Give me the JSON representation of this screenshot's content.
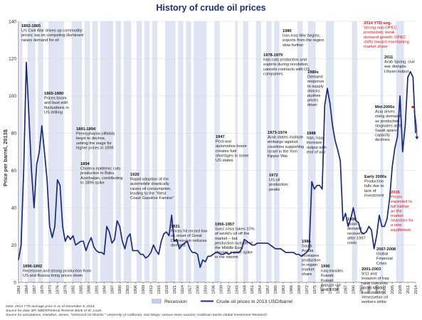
{
  "chart_data": {
    "type": "line",
    "title": "History of crude oil prices",
    "ylabel": "Price per barrel, 2013$",
    "ylim": [
      0,
      140
    ],
    "yticks": [
      0,
      20,
      40,
      60,
      80,
      100,
      120,
      140
    ],
    "xlim": [
      1861,
      2014
    ],
    "xtick_labels": [
      "1861",
      "1864",
      "1867",
      "1870",
      "1873",
      "1876",
      "1879",
      "1882",
      "1885",
      "1888",
      "1891",
      "1894",
      "1897",
      "1900",
      "1903",
      "1906",
      "1909",
      "1912",
      "1915",
      "1918",
      "1921",
      "1924",
      "1927",
      "1930",
      "1933",
      "1936",
      "1939",
      "1942",
      "1945",
      "1948",
      "1951",
      "1954",
      "1957",
      "1960",
      "1963",
      "1966",
      "1969",
      "1972",
      "1975",
      "1978",
      "1981",
      "1984",
      "1987",
      "1990",
      "1993",
      "1996",
      "1999",
      "2002",
      "2005",
      "2008",
      "2011",
      "2014"
    ],
    "series": [
      {
        "name": "Crude oil prices in 2013 USD/barrel",
        "color": "#1b2a80",
        "x": [
          1861,
          1862,
          1863,
          1864,
          1865,
          1866,
          1867,
          1868,
          1869,
          1870,
          1871,
          1872,
          1873,
          1874,
          1875,
          1876,
          1877,
          1878,
          1879,
          1880,
          1881,
          1882,
          1883,
          1884,
          1885,
          1886,
          1887,
          1888,
          1889,
          1890,
          1891,
          1892,
          1893,
          1894,
          1895,
          1896,
          1897,
          1898,
          1899,
          1900,
          1901,
          1902,
          1903,
          1904,
          1905,
          1906,
          1907,
          1908,
          1909,
          1910,
          1911,
          1912,
          1913,
          1914,
          1915,
          1916,
          1917,
          1918,
          1919,
          1920,
          1921,
          1922,
          1923,
          1924,
          1925,
          1926,
          1927,
          1928,
          1929,
          1930,
          1931,
          1932,
          1933,
          1934,
          1935,
          1936,
          1937,
          1938,
          1939,
          1940,
          1941,
          1942,
          1943,
          1944,
          1945,
          1946,
          1947,
          1948,
          1949,
          1950,
          1951,
          1952,
          1953,
          1954,
          1955,
          1956,
          1957,
          1958,
          1959,
          1960,
          1961,
          1962,
          1963,
          1964,
          1965,
          1966,
          1967,
          1968,
          1969,
          1970,
          1971,
          1972,
          1973,
          1974,
          1975,
          1976,
          1977,
          1978,
          1979,
          1980,
          1981,
          1982,
          1983,
          1984,
          1985,
          1986,
          1987,
          1988,
          1989,
          1990,
          1991,
          1992,
          1993,
          1994,
          1995,
          1996,
          1997,
          1998,
          1999,
          2000,
          2001,
          2002,
          2003,
          2004,
          2005,
          2006,
          2007,
          2008,
          2009,
          2010,
          2011,
          2012,
          2013,
          2014
        ],
        "y": [
          12,
          20,
          60,
          118,
          90,
          60,
          40,
          63,
          70,
          84,
          70,
          55,
          30,
          24,
          30,
          55,
          52,
          30,
          22,
          25,
          23,
          25,
          20,
          21,
          22,
          22,
          17,
          21,
          24,
          19,
          17,
          16,
          16,
          15,
          30,
          27,
          21,
          23,
          33,
          30,
          22,
          18,
          24,
          26,
          17,
          17,
          17,
          15,
          15,
          13,
          14,
          16,
          20,
          17,
          15,
          22,
          26,
          27,
          25,
          36,
          22,
          23,
          18,
          20,
          21,
          22,
          18,
          16,
          16,
          15,
          8,
          12,
          11,
          14,
          14,
          15,
          16,
          16,
          15,
          15,
          16,
          15,
          16,
          16,
          16,
          16,
          18,
          23,
          22,
          21,
          20,
          20,
          21,
          21,
          21,
          21,
          21,
          20,
          19,
          18,
          18,
          18,
          17,
          16,
          16,
          16,
          16,
          15,
          15,
          14,
          15,
          16,
          18,
          54,
          50,
          52,
          52,
          50,
          95,
          104,
          96,
          84,
          76,
          71,
          65,
          33,
          37,
          30,
          34,
          40,
          33,
          32,
          27,
          26,
          27,
          30,
          28,
          18,
          25,
          36,
          30,
          30,
          34,
          45,
          62,
          72,
          78,
          100,
          70,
          84,
          110,
          113,
          110,
          80
        ]
      },
      {
        "name": "Recession",
        "color": "#c5cde9"
      }
    ],
    "recession_years": [
      1862,
      1865,
      1866,
      1867,
      1869,
      1870,
      1873,
      1874,
      1875,
      1876,
      1877,
      1878,
      1882,
      1883,
      1884,
      1885,
      1887,
      1888,
      1890,
      1891,
      1893,
      1894,
      1895,
      1896,
      1897,
      1899,
      1900,
      1902,
      1903,
      1904,
      1907,
      1908,
      1910,
      1911,
      1913,
      1914,
      1918,
      1919,
      1920,
      1921,
      1923,
      1924,
      1926,
      1927,
      1929,
      1930,
      1931,
      1932,
      1933,
      1937,
      1938,
      1945,
      1948,
      1949,
      1953,
      1954,
      1957,
      1958,
      1960,
      1961,
      1969,
      1970,
      1973,
      1974,
      1975,
      1980,
      1981,
      1982,
      1990,
      1991,
      2001,
      2007,
      2008,
      2009
    ],
    "legend": [
      "Recession",
      "Crude oil prices in 2013 USD/barrel"
    ],
    "annotations": [
      {
        "text": "1862-1865|US Civil War drives up commodity|prices; tax on competing illuminant|raises demand for oil",
        "style": "black"
      },
      {
        "text": "1865-1890|Prices boom|and bust with|fluctuations in|US drilling",
        "style": "black"
      },
      {
        "text": "1891-1894|Pennsylvania oilfields|begin to decline,|setting the stage for|higher prices in 1895",
        "style": "black"
      },
      {
        "text": "1894|Cholera epidemic cuts|production in Baku,|Azerbaijan, contributing|to 1895 spike",
        "style": "black"
      },
      {
        "text": "1890-1892|Recession and strong production from|US and Russia bring prices down",
        "style": "black"
      },
      {
        "text": "1920|Rapid adoption of the|automobile drastically|raises oil consumption,|leading to the \"West|Coast Gasoline Famine\"",
        "style": "black"
      },
      {
        "text": "1931|Prices hit record low|as onset of Great|Depression reduces|demand",
        "style": "black"
      },
      {
        "text": "1947|Post-war|automotive boom|creates fuel|shortages in some|US states",
        "style": "black"
      },
      {
        "text": "1956-1957|Suez crisis takes 10%|of world's oil off the|market – but|production outside of|the Middle East|stymies a price spike|in the interim",
        "style": "black"
      },
      {
        "text": "1972|US oil|production|peaks",
        "style": "black"
      },
      {
        "text": "1973-1974|Arab states institute|embargo against|countries supporting|Israel in the Yom|Kippur War",
        "style": "black"
      },
      {
        "text": "1978-1979|Iran cuts production and|exports during revolution;|cancels contracts with US|companies",
        "style": "black"
      },
      {
        "text": "1980|Iran-Iraq War begins;|exports from the region|slow further",
        "style": "black"
      },
      {
        "text": "1980s|Demand|response|to supply|shocks|pushes|prices|down",
        "style": "black"
      },
      {
        "text": "1988|Iran, Iraq|increase|output with|end of war",
        "style": "black"
      },
      {
        "text": "1986|Saudi|Arabia|increases|production|to regain|market|share",
        "style": "black"
      },
      {
        "text": "1990|Iraq invades|Kuwait;|Kuwait|exports cut|until 1994",
        "style": "black"
      },
      {
        "text": "1999|Asian|demand|recovers|after 1997|crisis",
        "style": "black"
      },
      {
        "text": "Early 2000s|Production|falls due to|lack of|investment",
        "style": "black"
      },
      {
        "text": "2001-2003|9/11 and|invasion of Iraq|raise concerns|about Middle|East stability;|Venezuelan oil|workers strike",
        "style": "black"
      },
      {
        "text": "2007-2008|Global|Financial|Crisis",
        "style": "black"
      },
      {
        "text": "Mid-2000s|Asia drives|rising demand|as production|stagnates and|Saudi spare|capacity|declines",
        "style": "black"
      },
      {
        "text": "2011|Arab Spring; civil|war disrupts|Libyan output",
        "style": "black"
      },
      {
        "text": "2014 YTD avg.|Strong non-OPEC|production; weak|demand growth; OPEC|shifts toward maintaining|market share",
        "style": "red"
      },
      {
        "text": "2015|Prices|expected to|fall further|as the|market|searches for|a new|equilibrium.",
        "style": "red"
      }
    ]
  },
  "footnotes": [
    "Note: 2014 YTD average price is as of December 8, 2014.",
    "Source for data: BP, NBER/Federal Reserve Bank of St. Louis.",
    "Source for annotations: Hamilton, James, \"Historical Oil Shocks,\" University of California, San Diego; various news sources; Goldman Sachs Global Investment Research."
  ]
}
